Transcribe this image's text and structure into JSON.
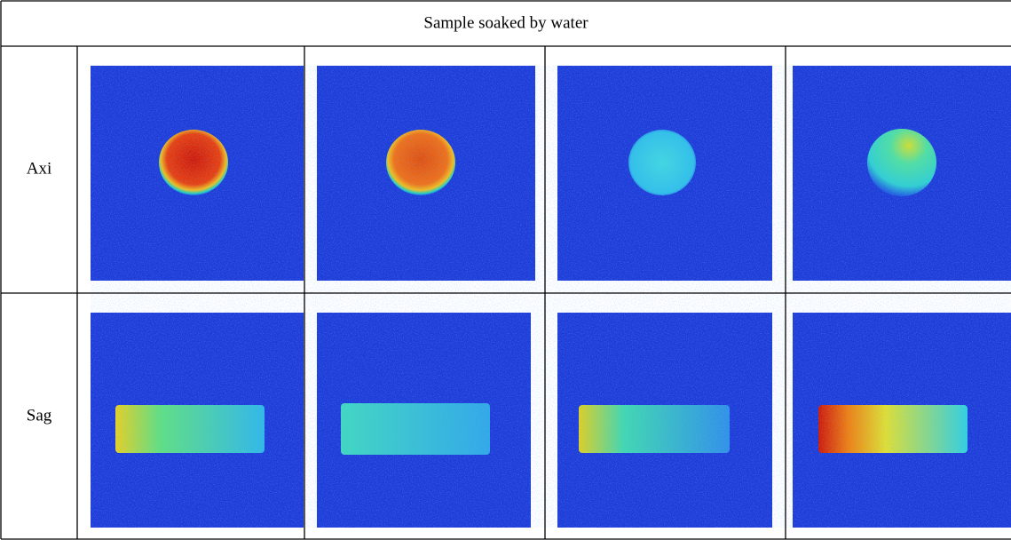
{
  "table": {
    "title": "Sample soaked by water",
    "rows": [
      {
        "label": "Axi"
      },
      {
        "label": "Sag"
      }
    ]
  }
}
